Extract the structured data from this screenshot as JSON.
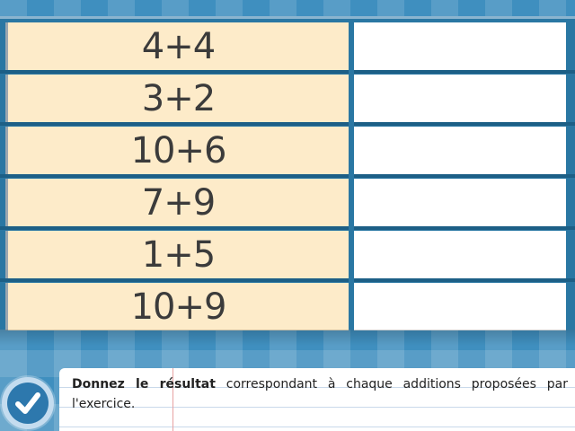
{
  "exercise": {
    "rows": [
      {
        "expression": "4+4",
        "answer": ""
      },
      {
        "expression": "3+2",
        "answer": ""
      },
      {
        "expression": "10+6",
        "answer": ""
      },
      {
        "expression": "7+9",
        "answer": ""
      },
      {
        "expression": "1+5",
        "answer": ""
      },
      {
        "expression": "10+9",
        "answer": ""
      }
    ]
  },
  "instruction": {
    "bold": "Donnez le résultat",
    "rest": " correspondant à chaque additions proposées par l'exercice."
  },
  "validate": {
    "icon": "checkmark-icon"
  },
  "colors": {
    "background": "#3f8fbf",
    "expression_cell": "#fdebc9",
    "answer_cell": "#ffffff",
    "row_line": "#1c5f86",
    "validate_button": "#2d78ad"
  }
}
